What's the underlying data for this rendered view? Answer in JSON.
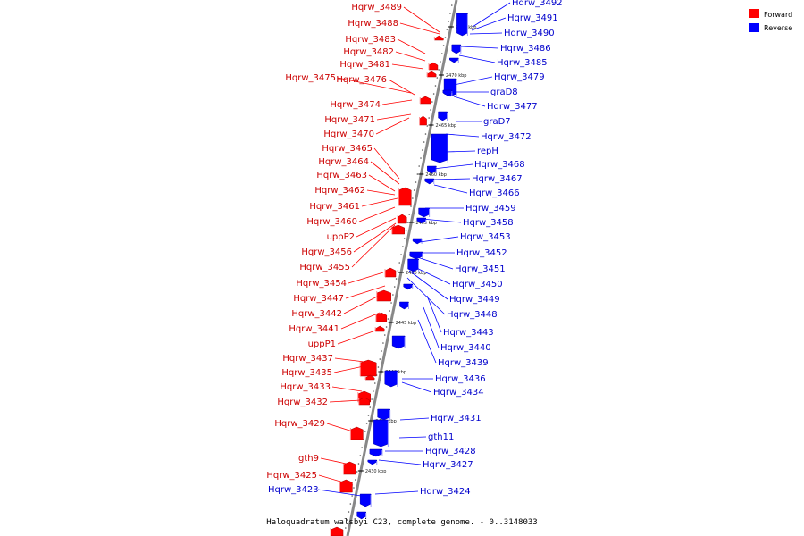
{
  "title": "Haloquadratum walsbyi C23, complete genome. - 0..3148033",
  "legend": [
    {
      "label": "Forward",
      "color": "#ff0000"
    },
    {
      "label": "Reverse",
      "color": "#0000ff"
    }
  ],
  "colors": {
    "forward": "#ff0000",
    "reverse": "#0000ff",
    "backbone": "#888888"
  },
  "scale_ticks": [
    "2475 kbp",
    "2470 kbp",
    "2465 kbp",
    "2460 kbp",
    "2455 kbp",
    "2450 kbp",
    "2445 kbp",
    "2440 kbp",
    "2435 kbp",
    "2430 kbp"
  ],
  "forward_genes": [
    "Hqrw_3489",
    "Hqrw_3488",
    "Hqrw_3483",
    "Hqrw_3482",
    "Hqrw_3481",
    "Hqrw_3475",
    "Hqrw_3476",
    "Hqrw_3474",
    "Hqrw_3471",
    "Hqrw_3470",
    "Hqrw_3465",
    "Hqrw_3464",
    "Hqrw_3463",
    "Hqrw_3462",
    "Hqrw_3461",
    "Hqrw_3460",
    "uppP2",
    "Hqrw_3456",
    "Hqrw_3455",
    "Hqrw_3454",
    "Hqrw_3447",
    "Hqrw_3442",
    "Hqrw_3441",
    "uppP1",
    "Hqrw_3437",
    "Hqrw_3435",
    "Hqrw_3433",
    "Hqrw_3432",
    "Hqrw_3429",
    "gth9",
    "Hqrw_3425"
  ],
  "reverse_genes": [
    "Hqrw_3492",
    "Hqrw_3491",
    "Hqrw_3490",
    "Hqrw_3486",
    "Hqrw_3485",
    "Hqrw_3479",
    "graD8",
    "Hqrw_3477",
    "graD7",
    "Hqrw_3472",
    "repH",
    "Hqrw_3468",
    "Hqrw_3467",
    "Hqrw_3466",
    "Hqrw_3459",
    "Hqrw_3458",
    "Hqrw_3453",
    "Hqrw_3452",
    "Hqrw_3451",
    "Hqrw_3450",
    "Hqrw_3449",
    "Hqrw_3448",
    "Hqrw_3443",
    "Hqrw_3440",
    "Hqrw_3439",
    "Hqrw_3436",
    "Hqrw_3434",
    "Hqrw_3431",
    "gth11",
    "Hqrw_3428",
    "Hqrw_3427",
    "Hqrw_3423",
    "Hqrw_3424"
  ]
}
